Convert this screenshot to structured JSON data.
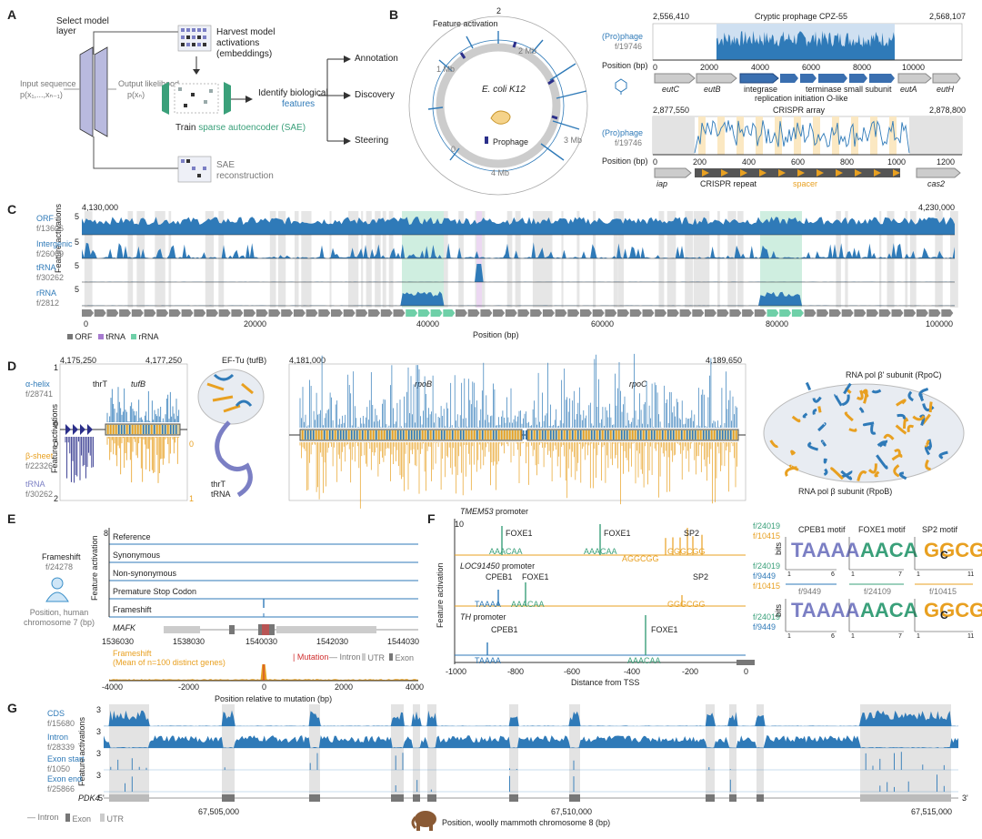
{
  "panels": {
    "A": "A",
    "B": "B",
    "C": "C",
    "D": "D",
    "E": "E",
    "F": "F",
    "G": "G"
  },
  "a": {
    "select_layer": "Select model layer",
    "input_sequence": "Input sequence",
    "input_formula": "p(x₁,...,xₙ₋₁)",
    "output_likelihood": "Output likelihood",
    "output_formula": "p(xₙ)",
    "harvest": "Harvest model activations (embeddings)",
    "train_prefix": "Train",
    "train_sparse": "sparse autoencoder (SAE)",
    "sae_recon": "SAE reconstruction",
    "identify": "Identify biological",
    "features": "features",
    "annotation": "Annotation",
    "discovery": "Discovery",
    "steering": "Steering"
  },
  "b": {
    "feature_activation": "Feature activation",
    "ecoli": "E. coli K12",
    "prophage_legend": "Prophage",
    "ticks": [
      "2",
      "1 Mb",
      "2 Mb",
      "3 Mb",
      "4 Mb",
      "0"
    ],
    "pro_track_label": "(Pro)phage",
    "pro_track_feature": "f/19746",
    "position_label": "Position (bp)",
    "top": {
      "start": "2,556,410",
      "title": "Cryptic prophage CPZ-55",
      "end": "2,568,107",
      "axis": [
        "0",
        "2000",
        "4000",
        "6000",
        "8000",
        "10000"
      ],
      "genes": [
        "eutC",
        "eutB",
        "integrase",
        "terminase small subunit",
        "eutA",
        "eutH"
      ],
      "gene2": "replication initiation O-like"
    },
    "bottom": {
      "start": "2,877,550",
      "title": "CRISPR array",
      "end": "2,878,800",
      "axis": [
        "0",
        "200",
        "400",
        "600",
        "800",
        "1000",
        "1200"
      ],
      "genes": [
        "iap",
        "CRISPR repeat",
        "spacer",
        "cas2"
      ]
    }
  },
  "c": {
    "start": "4,130,000",
    "end": "4,230,000",
    "tracks": [
      {
        "name": "ORF",
        "feature": "f/13606",
        "ymax": "5"
      },
      {
        "name": "Intergenic",
        "feature": "f/26069",
        "ymax": "5"
      },
      {
        "name": "tRNA",
        "feature": "f/30262",
        "ymax": "5"
      },
      {
        "name": "rRNA",
        "feature": "f/2812",
        "ymax": "5"
      }
    ],
    "ylabel": "Feature activations",
    "xaxis": [
      "0",
      "20000",
      "40000",
      "60000",
      "80000",
      "100000"
    ],
    "xlabel": "Position (bp)",
    "legend": [
      "ORF",
      "tRNA",
      "rRNA"
    ]
  },
  "d": {
    "left_start": "4,175,250",
    "left_end": "4,177,250",
    "alpha_helix": "α-helix",
    "alpha_feature": "f/28741",
    "beta_sheet": "β-sheet",
    "beta_feature": "f/22326",
    "trna": "tRNA",
    "trna_feature": "f/30262",
    "ylabel": "Feature activations",
    "thrT": "thrT",
    "tufB": "tufB",
    "eftu": "EF-Tu (tufB)",
    "thrT_trna_1": "thrT",
    "thrT_trna_2": "tRNA",
    "mid_start": "4,181,000",
    "mid_end": "4,189,650",
    "rpoB": "rpoB",
    "rpoC": "rpoC",
    "rpoc_label": "RNA pol β' subunit (RpoC)",
    "rpob_label": "RNA pol β subunit (RpoB)",
    "yvals_top": [
      "1",
      "0"
    ],
    "yvals_bottom_left": [
      "0",
      "2"
    ],
    "yvals_orange": [
      "0",
      "1"
    ]
  },
  "e": {
    "frameshift": "Frameshift",
    "frameshift_feature": "f/24278",
    "position_human": "Position, human chromosome 7 (bp)",
    "ylabel": "Feature activation",
    "rows": [
      "Reference",
      "Synonymous",
      "Non-synonymous",
      "Premature Stop Codon",
      "Frameshift"
    ],
    "ymax": "8",
    "gene": "MAFK",
    "coords": [
      "1536030",
      "1538030",
      "1540030",
      "1542030",
      "1544030"
    ],
    "mean_label": "Frameshift",
    "mean_sub": "(Mean of n=100 distinct genes)",
    "legend_mutation": "Mutation",
    "legend_intron": "Intron",
    "legend_utr": "UTR",
    "legend_exon": "Exon",
    "xaxis": [
      "-4000",
      "-2000",
      "0",
      "2000",
      "4000"
    ],
    "xlabel": "Position relative to mutation (bp)"
  },
  "f": {
    "promoters": [
      {
        "name": "TMEM53",
        "suffix": " promoter",
        "ymax": "10",
        "motifs": [
          "FOXE1",
          "FOXE1",
          "SP2"
        ],
        "seqs": [
          "AAACAA",
          "AAACAA",
          "AGGCGG",
          "GGGCGG"
        ],
        "features": [
          "f/24019",
          "f/10415"
        ]
      },
      {
        "name": "LOC91450",
        "suffix": " promoter",
        "motifs": [
          "CPEB1",
          "FOXE1",
          "SP2"
        ],
        "seqs": [
          "TAAAA",
          "AAACAA",
          "GGGCGG"
        ],
        "features": [
          "f/24019",
          "f/9449",
          "f/10415"
        ]
      },
      {
        "name": "TH",
        "suffix": " promoter",
        "motifs": [
          "CPEB1",
          "FOXE1"
        ],
        "seqs": [
          "TAAAA",
          "AAACAA"
        ],
        "features": [
          "f/24019",
          "f/9449"
        ]
      }
    ],
    "ylabel": "Feature activation",
    "xaxis": [
      "-1000",
      "-800",
      "-600",
      "-400",
      "-200",
      "0"
    ],
    "xlabel": "Distance from TSS",
    "motif_titles": [
      "CPEB1 motif",
      "FOXE1 motif",
      "SP2 motif"
    ],
    "bits": "bits",
    "motif_features": [
      "f/9449",
      "f/24109",
      "f/10415"
    ],
    "motif_ticks": [
      [
        "1",
        "6"
      ],
      [
        "1",
        "7"
      ],
      [
        "1",
        "11"
      ]
    ],
    "logo_letters": [
      "TAAAA",
      "AACA",
      "GGCGG"
    ],
    "logo_center": "C"
  },
  "g": {
    "tracks": [
      {
        "name": "CDS",
        "feature": "f/15680",
        "ymax": "3"
      },
      {
        "name": "Intron",
        "feature": "f/28339",
        "ymax": "3"
      },
      {
        "name": "Exon start",
        "feature": "f/1050",
        "ymax": "3"
      },
      {
        "name": "Exon end",
        "feature": "f/25866",
        "ymax": "3"
      }
    ],
    "ylabel": "Feature activations",
    "gene": "PDK4",
    "five": "5'",
    "three": "3'",
    "coords": [
      "67,505,000",
      "67,510,000",
      "67,515,000"
    ],
    "legend": [
      "Intron",
      "Exon",
      "UTR"
    ],
    "xlabel": "Position, woolly mammoth chromosome 8 (bp)"
  },
  "colors": {
    "blue": "#2f7ab8",
    "orange": "#e8a021",
    "green": "#3aa07a",
    "gray_bg": "#e3e3e3",
    "teal_bg": "#cfeee0",
    "navy": "#2b2f8a",
    "purple": "#7b7fc4"
  }
}
